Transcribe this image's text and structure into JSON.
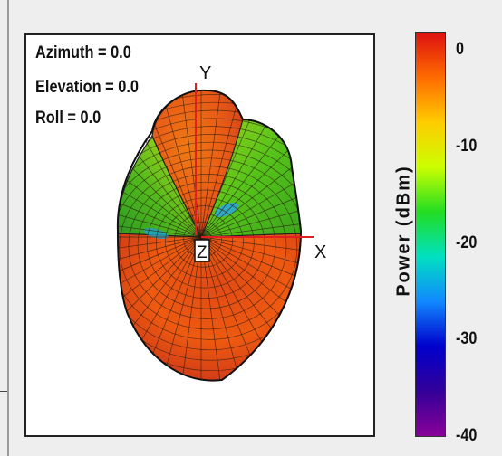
{
  "orientation": {
    "azimuth": "Azimuth = 0.0",
    "elevation": "Elevation = 0.0",
    "roll": "Roll = 0.0"
  },
  "axes": {
    "x_label": "X",
    "y_label": "Y",
    "z_label": "Z"
  },
  "chart_data": {
    "type": "heatmap",
    "description_kind": "3D radiation pattern",
    "colorbar": {
      "label": "Power (dBm)",
      "range": [
        -40,
        2
      ],
      "ticks": [
        0,
        -10,
        -20,
        -30,
        -40
      ],
      "tick_labels": [
        "0",
        "-10",
        "-20",
        "-30",
        "-40"
      ],
      "colors": [
        "#dd1111",
        "#ff6a00",
        "#ffcc00",
        "#ccff00",
        "#22dd22",
        "#00e0c0",
        "#1188ff",
        "#0000cc",
        "#330099",
        "#880099"
      ]
    }
  }
}
